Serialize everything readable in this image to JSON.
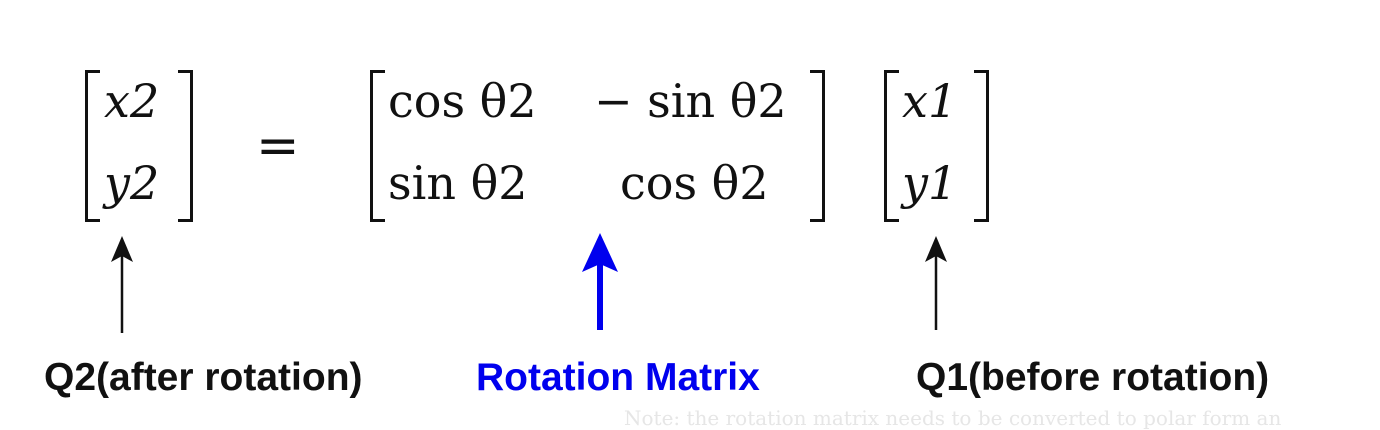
{
  "equation": {
    "output_vector": {
      "top": "x2",
      "bottom": "y2"
    },
    "equals": "=",
    "matrix": {
      "r1c1": "cos θ2",
      "r1c2": "− sin θ2",
      "r2c1": "sin θ2",
      "r2c2": "cos θ2"
    },
    "input_vector": {
      "top": "x1",
      "bottom": "y1"
    }
  },
  "labels": {
    "q2": "Q2(after rotation)",
    "rotation_matrix": "Rotation Matrix",
    "q1": "Q1(before rotation)"
  },
  "colors": {
    "text": "#111111",
    "accent": "#0000ee",
    "faint": "#e6e6e6"
  },
  "note": "Note: the rotation matrix needs to be converted to polar form an"
}
